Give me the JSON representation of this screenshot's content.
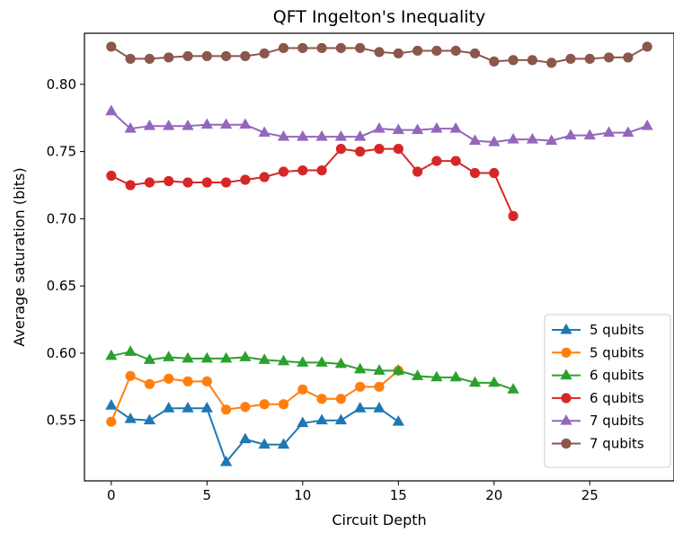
{
  "chart_data": {
    "type": "line",
    "title": "QFT Ingelton's Inequality",
    "xlabel": "Circuit Depth",
    "ylabel": "Average saturation (bits)",
    "xlim": [
      -1.4,
      29.4
    ],
    "ylim": [
      0.505,
      0.838
    ],
    "xticks": [
      0,
      5,
      10,
      15,
      20,
      25
    ],
    "yticks": [
      0.55,
      0.6,
      0.65,
      0.7,
      0.75,
      0.8
    ],
    "grid": false,
    "legend_position": "lower-right",
    "series": [
      {
        "name": "5 qubits",
        "marker": "triangle",
        "color": "#1f77b4",
        "x": [
          0,
          1,
          2,
          3,
          4,
          5,
          6,
          7,
          8,
          9,
          10,
          11,
          12,
          13,
          14,
          15
        ],
        "values": [
          0.561,
          0.551,
          0.55,
          0.559,
          0.559,
          0.559,
          0.519,
          0.536,
          0.532,
          0.532,
          0.548,
          0.55,
          0.55,
          0.559,
          0.559,
          0.549
        ]
      },
      {
        "name": "5 qubits",
        "marker": "circle",
        "color": "#ff7f0e",
        "x": [
          0,
          1,
          2,
          3,
          4,
          5,
          6,
          7,
          8,
          9,
          10,
          11,
          12,
          13,
          14,
          15
        ],
        "values": [
          0.549,
          0.583,
          0.577,
          0.581,
          0.579,
          0.579,
          0.558,
          0.56,
          0.562,
          0.562,
          0.573,
          0.566,
          0.566,
          0.575,
          0.575,
          0.587
        ]
      },
      {
        "name": "6 qubits",
        "marker": "triangle",
        "color": "#2ca02c",
        "x": [
          0,
          1,
          2,
          3,
          4,
          5,
          6,
          7,
          8,
          9,
          10,
          11,
          12,
          13,
          14,
          15,
          16,
          17,
          18,
          19,
          20,
          21
        ],
        "values": [
          0.598,
          0.601,
          0.595,
          0.597,
          0.596,
          0.596,
          0.596,
          0.597,
          0.595,
          0.594,
          0.593,
          0.593,
          0.592,
          0.588,
          0.587,
          0.587,
          0.583,
          0.582,
          0.582,
          0.578,
          0.578,
          0.573
        ]
      },
      {
        "name": "6 qubits",
        "marker": "circle",
        "color": "#d62728",
        "x": [
          0,
          1,
          2,
          3,
          4,
          5,
          6,
          7,
          8,
          9,
          10,
          11,
          12,
          13,
          14,
          15,
          16,
          17,
          18,
          19,
          20,
          21
        ],
        "values": [
          0.732,
          0.725,
          0.727,
          0.728,
          0.727,
          0.727,
          0.727,
          0.729,
          0.731,
          0.735,
          0.736,
          0.736,
          0.752,
          0.75,
          0.752,
          0.752,
          0.735,
          0.743,
          0.743,
          0.734,
          0.734,
          0.702
        ]
      },
      {
        "name": "7 qubits",
        "marker": "triangle",
        "color": "#9467bd",
        "x": [
          0,
          1,
          2,
          3,
          4,
          5,
          6,
          7,
          8,
          9,
          10,
          11,
          12,
          13,
          14,
          15,
          16,
          17,
          18,
          19,
          20,
          21,
          22,
          23,
          24,
          25,
          26,
          27,
          28
        ],
        "values": [
          0.78,
          0.767,
          0.769,
          0.769,
          0.769,
          0.77,
          0.77,
          0.77,
          0.764,
          0.761,
          0.761,
          0.761,
          0.761,
          0.761,
          0.767,
          0.766,
          0.766,
          0.767,
          0.767,
          0.758,
          0.757,
          0.759,
          0.759,
          0.758,
          0.762,
          0.762,
          0.764,
          0.764,
          0.769
        ]
      },
      {
        "name": "7 qubits",
        "marker": "circle",
        "color": "#8c564b",
        "x": [
          0,
          1,
          2,
          3,
          4,
          5,
          6,
          7,
          8,
          9,
          10,
          11,
          12,
          13,
          14,
          15,
          16,
          17,
          18,
          19,
          20,
          21,
          22,
          23,
          24,
          25,
          26,
          27,
          28
        ],
        "values": [
          0.828,
          0.819,
          0.819,
          0.82,
          0.821,
          0.821,
          0.821,
          0.821,
          0.823,
          0.827,
          0.827,
          0.827,
          0.827,
          0.827,
          0.824,
          0.823,
          0.825,
          0.825,
          0.825,
          0.823,
          0.817,
          0.818,
          0.818,
          0.816,
          0.819,
          0.819,
          0.82,
          0.82,
          0.828
        ]
      }
    ]
  }
}
